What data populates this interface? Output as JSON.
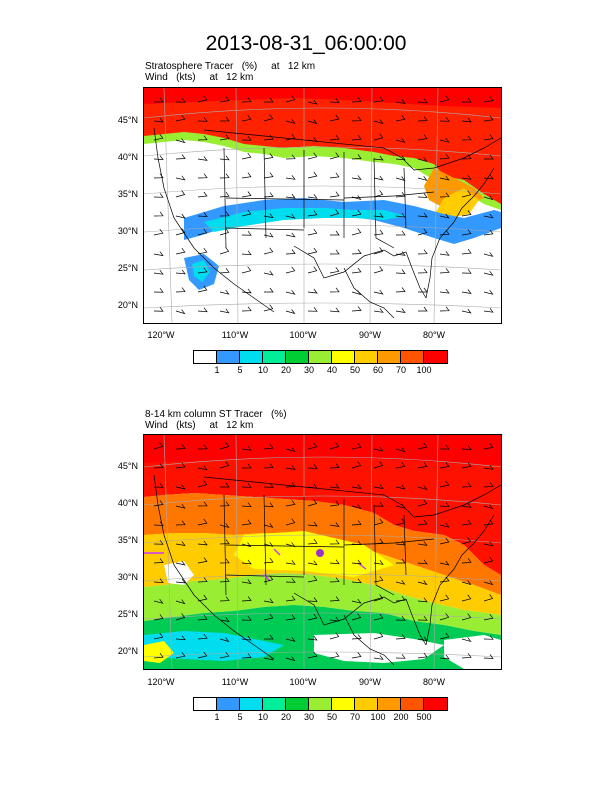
{
  "title": "2013-08-31_06:00:00",
  "panels": [
    {
      "subtitle_line1": "Stratosphere Tracer   (%)     at   12 km",
      "subtitle_line2": "Wind   (kts)     at   12 km",
      "lat_labels": [
        "45°N",
        "40°N",
        "35°N",
        "30°N",
        "25°N",
        "20°N"
      ],
      "lon_labels": [
        "120°W",
        "110°W",
        "100°W",
        "90°W",
        "80°W"
      ],
      "colorbar_labels": [
        "1",
        "5",
        "10",
        "20",
        "30",
        "40",
        "50",
        "60",
        "70",
        "100"
      ],
      "colorbar_colors": [
        "#ffffff",
        "#3399ff",
        "#00ddee",
        "#00ee99",
        "#00cc33",
        "#99ee33",
        "#ffff00",
        "#ffcc00",
        "#ff9900",
        "#ff5500",
        "#ff0000"
      ]
    },
    {
      "subtitle_line1": "8-14 km column ST Tracer   (%)",
      "subtitle_line2": "Wind   (kts)     at   12 km",
      "lat_labels": [
        "45°N",
        "40°N",
        "35°N",
        "30°N",
        "25°N",
        "20°N"
      ],
      "lon_labels": [
        "120°W",
        "110°W",
        "100°W",
        "90°W",
        "80°W"
      ],
      "colorbar_labels": [
        "1",
        "5",
        "10",
        "20",
        "30",
        "50",
        "70",
        "100",
        "200",
        "500"
      ],
      "colorbar_colors": [
        "#ffffff",
        "#3399ff",
        "#00ddee",
        "#00ee99",
        "#00cc33",
        "#99ee33",
        "#ffff00",
        "#ffcc00",
        "#ff9900",
        "#ff5500",
        "#ff0000"
      ]
    }
  ]
}
